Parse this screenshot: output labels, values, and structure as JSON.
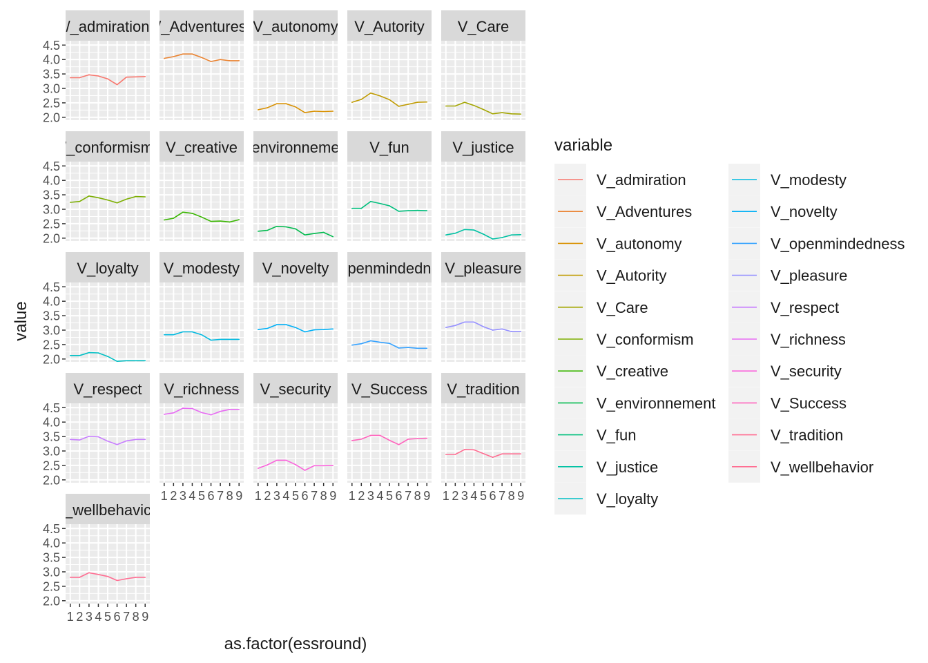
{
  "chart_data": {
    "type": "line",
    "facet_wrap": true,
    "x_categories": [
      "1",
      "2",
      "3",
      "4",
      "5",
      "6",
      "7",
      "8",
      "9"
    ],
    "xlabel": "as.factor(essround)",
    "ylabel": "value",
    "y_ticks": [
      2.0,
      2.5,
      3.0,
      3.5,
      4.0,
      4.5
    ],
    "y_tick_labels": [
      "2.0",
      "2.5",
      "3.0",
      "3.5",
      "4.0",
      "4.5"
    ],
    "ylim": [
      1.9,
      4.65
    ],
    "grid": true,
    "legend": {
      "title": "variable",
      "placement": "right"
    },
    "series": [
      {
        "name": "V_admiration",
        "strip": "/_admiration",
        "color": "#F8766D",
        "values": [
          3.37,
          3.37,
          3.47,
          3.43,
          3.33,
          3.13,
          3.39,
          3.4,
          3.41
        ]
      },
      {
        "name": "V_Adventures",
        "strip": "/_Adventures",
        "color": "#EA8331",
        "values": [
          4.04,
          4.1,
          4.19,
          4.19,
          4.07,
          3.93,
          4.0,
          3.96,
          3.96
        ]
      },
      {
        "name": "V_autonomy",
        "strip": "V_autonomy",
        "color": "#D89000",
        "values": [
          2.26,
          2.33,
          2.47,
          2.47,
          2.36,
          2.16,
          2.21,
          2.2,
          2.21
        ]
      },
      {
        "name": "V_Autority",
        "strip": "V_Autority",
        "color": "#C09B00",
        "values": [
          2.52,
          2.62,
          2.84,
          2.74,
          2.61,
          2.38,
          2.45,
          2.52,
          2.53
        ]
      },
      {
        "name": "V_Care",
        "strip": "V_Care",
        "color": "#A3A500",
        "values": [
          2.39,
          2.39,
          2.52,
          2.41,
          2.27,
          2.12,
          2.16,
          2.12,
          2.11
        ]
      },
      {
        "name": "V_conformism",
        "strip": "/_conformism",
        "color": "#7CAE00",
        "values": [
          3.24,
          3.27,
          3.46,
          3.4,
          3.32,
          3.22,
          3.35,
          3.44,
          3.43
        ]
      },
      {
        "name": "V_creative",
        "strip": "V_creative",
        "color": "#39B600",
        "values": [
          2.63,
          2.69,
          2.9,
          2.86,
          2.73,
          2.58,
          2.59,
          2.56,
          2.64
        ]
      },
      {
        "name": "V_environnement",
        "strip": "environneme",
        "color": "#00BB4E",
        "values": [
          2.24,
          2.27,
          2.41,
          2.39,
          2.32,
          2.11,
          2.16,
          2.2,
          2.05
        ]
      },
      {
        "name": "V_fun",
        "strip": "V_fun",
        "color": "#00BF7D",
        "values": [
          3.03,
          3.03,
          3.27,
          3.2,
          3.12,
          2.93,
          2.95,
          2.96,
          2.95
        ]
      },
      {
        "name": "V_justice",
        "strip": "V_justice",
        "color": "#00C1A3",
        "values": [
          2.11,
          2.17,
          2.3,
          2.28,
          2.14,
          1.97,
          2.02,
          2.11,
          2.12
        ]
      },
      {
        "name": "V_loyalty",
        "strip": "V_loyalty",
        "color": "#00BFC4",
        "values": [
          2.12,
          2.12,
          2.22,
          2.21,
          2.09,
          1.92,
          1.94,
          1.94,
          1.94
        ]
      },
      {
        "name": "V_modesty",
        "strip": "V_modesty",
        "color": "#00BAE0",
        "values": [
          2.84,
          2.84,
          2.94,
          2.94,
          2.84,
          2.65,
          2.68,
          2.68,
          2.68
        ]
      },
      {
        "name": "V_novelty",
        "strip": "V_novelty",
        "color": "#00B0F6",
        "values": [
          3.02,
          3.06,
          3.19,
          3.19,
          3.09,
          2.94,
          3.01,
          3.02,
          3.04
        ]
      },
      {
        "name": "V_openmindedness",
        "strip": "penmindedn",
        "color": "#35A2FF",
        "values": [
          2.48,
          2.53,
          2.63,
          2.58,
          2.54,
          2.38,
          2.4,
          2.37,
          2.37
        ]
      },
      {
        "name": "V_pleasure",
        "strip": "V_pleasure",
        "color": "#9590FF",
        "values": [
          3.09,
          3.16,
          3.28,
          3.28,
          3.12,
          3.0,
          3.04,
          2.95,
          2.95
        ]
      },
      {
        "name": "V_respect",
        "strip": "V_respect",
        "color": "#C77CFF",
        "values": [
          3.4,
          3.38,
          3.51,
          3.49,
          3.34,
          3.22,
          3.35,
          3.4,
          3.4
        ]
      },
      {
        "name": "V_richness",
        "strip": "V_richness",
        "color": "#E76BF3",
        "values": [
          4.27,
          4.32,
          4.48,
          4.47,
          4.33,
          4.25,
          4.37,
          4.44,
          4.44
        ]
      },
      {
        "name": "V_security",
        "strip": "V_security",
        "color": "#FA62DB",
        "values": [
          2.4,
          2.52,
          2.68,
          2.68,
          2.53,
          2.33,
          2.49,
          2.49,
          2.5
        ]
      },
      {
        "name": "V_Success",
        "strip": "V_Success",
        "color": "#FF62BC",
        "values": [
          3.36,
          3.41,
          3.54,
          3.54,
          3.37,
          3.22,
          3.41,
          3.43,
          3.44
        ]
      },
      {
        "name": "V_tradition",
        "strip": "V_tradition",
        "color": "#FF6C91",
        "values": [
          2.88,
          2.88,
          3.05,
          3.04,
          2.91,
          2.78,
          2.9,
          2.9,
          2.9
        ]
      },
      {
        "name": "V_wellbehavior",
        "strip": "_wellbehavic",
        "color": "#FF6C91",
        "values": [
          2.81,
          2.81,
          2.97,
          2.91,
          2.84,
          2.7,
          2.76,
          2.81,
          2.81
        ]
      }
    ]
  }
}
